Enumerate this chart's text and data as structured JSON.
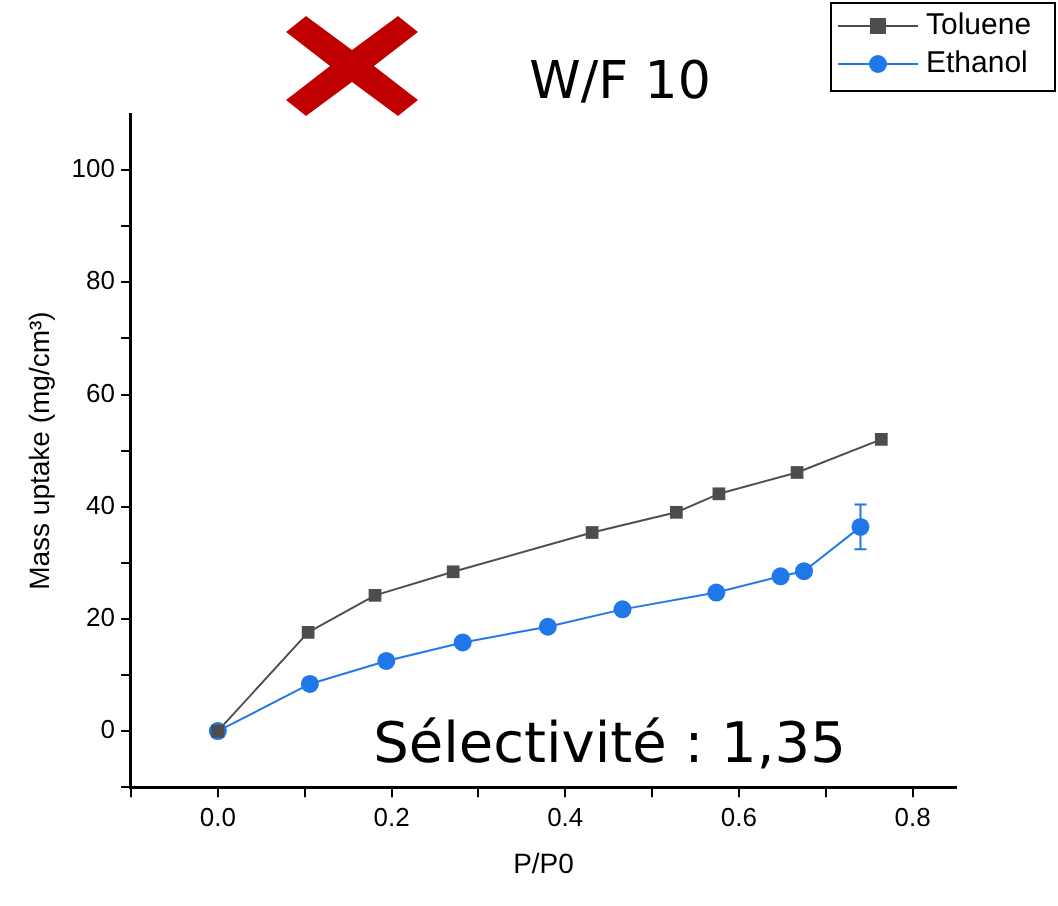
{
  "chart_data": {
    "type": "line",
    "title": "W/F 10",
    "xlabel": "P/P0",
    "ylabel": "Mass uptake (mg/cm³)",
    "xlim": [
      -0.1,
      0.85
    ],
    "xticks": [
      {
        "value": -0.1,
        "label": null
      },
      {
        "value": 0,
        "label": "0.0"
      },
      {
        "value": 0.1,
        "label": null
      },
      {
        "value": 0.2,
        "label": "0.2"
      },
      {
        "value": 0.3,
        "label": null
      },
      {
        "value": 0.4,
        "label": "0.4"
      },
      {
        "value": 0.5,
        "label": null
      },
      {
        "value": 0.6,
        "label": "0.6"
      },
      {
        "value": 0.7,
        "label": null
      },
      {
        "value": 0.8,
        "label": "0.8"
      }
    ],
    "ylim": [
      -10,
      110
    ],
    "yticks": [
      {
        "value": -10,
        "label": null
      },
      0,
      {
        "value": 10,
        "label": null
      },
      20,
      {
        "value": 30,
        "label": null
      },
      40,
      {
        "value": 50,
        "label": null
      },
      60,
      {
        "value": 70,
        "label": null
      },
      80,
      {
        "value": 90,
        "label": null
      },
      100
    ],
    "series": [
      {
        "name": "Toluene",
        "color": "#4d4d4d",
        "marker": "square",
        "x": [
          0,
          0.104,
          0.181,
          0.271,
          0.431,
          0.528,
          0.577,
          0.667,
          0.764
        ],
        "values": [
          0,
          17.6,
          24.2,
          28.4,
          35.4,
          39.0,
          42.3,
          46.1,
          52.0
        ]
      },
      {
        "name": "Ethanol",
        "color": "#1f77e8",
        "marker": "circle",
        "x": [
          0,
          0.106,
          0.194,
          0.282,
          0.38,
          0.466,
          0.574,
          0.648,
          0.675,
          0.74
        ],
        "values": [
          0,
          8.4,
          12.5,
          15.8,
          18.6,
          21.7,
          24.7,
          27.6,
          28.5,
          36.4
        ],
        "errors": [
          null,
          null,
          null,
          null,
          null,
          null,
          null,
          null,
          null,
          4
        ]
      }
    ],
    "annotations": [
      "Sélectivité : 1,35"
    ],
    "legend": "top right",
    "grid": false,
    "line_style": "solid"
  }
}
